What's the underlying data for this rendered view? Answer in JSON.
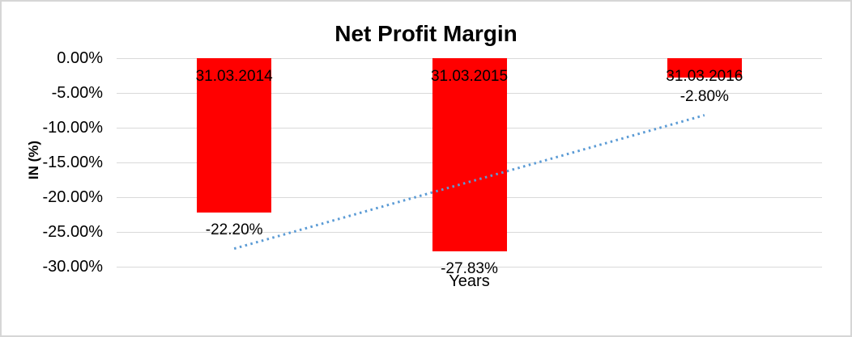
{
  "chart_data": {
    "type": "bar",
    "title": "Net Profit Margin",
    "categories": [
      "31.03.2014",
      "31.03.2015",
      "31.03.2016"
    ],
    "values": [
      -22.2,
      -27.83,
      -2.8
    ],
    "value_labels": [
      "-22.20%",
      "-27.83%",
      "-2.80%"
    ],
    "xlabel": "Years",
    "ylabel": "IN (%)",
    "ylim": [
      -30,
      0
    ],
    "yticks": [
      0,
      -5,
      -10,
      -15,
      -20,
      -25,
      -30
    ],
    "ytick_labels": [
      "0.00%",
      "-5.00%",
      "-10.00%",
      "-15.00%",
      "-20.00%",
      "-25.00%",
      "-30.00%"
    ],
    "grid": true,
    "legend_position": "none",
    "trendline": {
      "type": "linear",
      "style": "dotted",
      "start_value": -27.4,
      "end_value": -8.2
    },
    "colors": {
      "bar": "#FF0000",
      "trendline": "#5B9BD5",
      "gridline": "#D9D9D9",
      "text": "#000000",
      "border": "#D6D6D6",
      "background": "#FFFFFF"
    }
  }
}
